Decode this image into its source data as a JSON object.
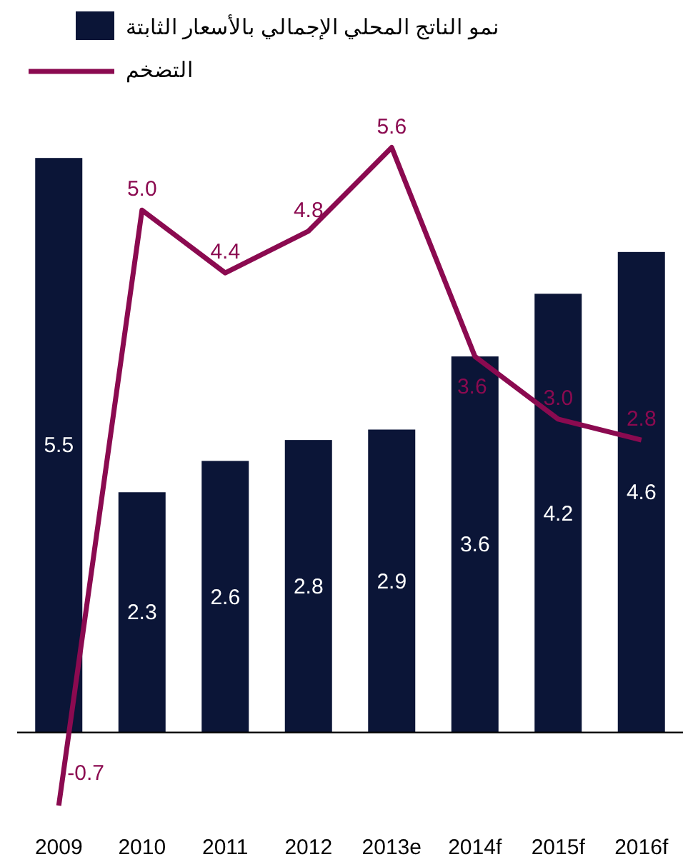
{
  "chart_data": {
    "type": "bar",
    "categories": [
      "2009",
      "2010",
      "2011",
      "2012",
      "2013e",
      "2014f",
      "2015f",
      "2016f"
    ],
    "series": [
      {
        "name": "نمو الناتج المحلي الإجمالي بالأسعار الثابتة",
        "color": "#0b1537",
        "values": [
          5.5,
          2.3,
          2.6,
          2.8,
          2.9,
          3.6,
          4.2,
          4.6
        ],
        "value_labels": [
          "5.5",
          "2.3",
          "2.6",
          "2.8",
          "2.9",
          "3.6",
          "4.2",
          "4.6"
        ]
      },
      {
        "name": "التضخم",
        "type": "line",
        "color": "#8b0a50",
        "values": [
          -0.7,
          5.0,
          4.4,
          4.8,
          5.6,
          3.6,
          3.0,
          2.8
        ],
        "value_labels": [
          "-0.7",
          "5.0",
          "4.4",
          "4.8",
          "5.6",
          "3.6",
          "3.0",
          "2.8"
        ]
      }
    ],
    "legend": "top left"
  }
}
